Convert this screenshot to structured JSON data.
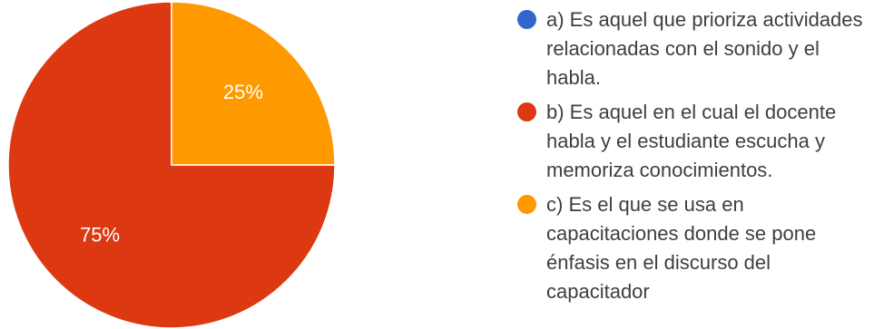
{
  "chart_data": {
    "type": "pie",
    "slices": [
      {
        "label": "a) Es aquel que prioriza actividades relacionadas con el sonido y el habla.",
        "value": 0,
        "color": "#3366cc",
        "display": ""
      },
      {
        "label": "b) Es aquel en el cual el docente habla y el estudiante escucha y memoriza conocimientos.",
        "value": 75,
        "color": "#dc3912",
        "display": "75%"
      },
      {
        "label": "c) Es el que se usa en capacitaciones donde se pone énfasis en el discurso del capacitador",
        "value": 25,
        "color": "#ff9900",
        "display": "25%"
      }
    ],
    "legend_position": "right"
  }
}
